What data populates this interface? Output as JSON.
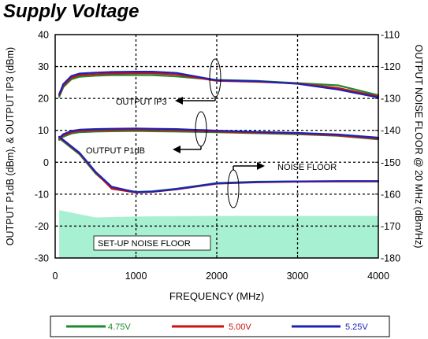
{
  "chart_data": {
    "type": "line",
    "title": "Supply Voltage",
    "xlabel": "FREQUENCY (MHz)",
    "ylabel_left": "OUTPUT P1dB (dBm), & OUTPUT IP3 (dBm)",
    "ylabel_right": "OUTPUT NOISE FLOOR @ 20 MHz (dBm/Hz)",
    "xlim": [
      0,
      4000
    ],
    "ylim_left": [
      -30,
      40
    ],
    "ylim_right": [
      -180,
      -110
    ],
    "x_ticks": [
      "0",
      "1000",
      "2000",
      "3000",
      "4000"
    ],
    "y_ticks_left": [
      "40",
      "30",
      "20",
      "10",
      "0",
      "-10",
      "-20",
      "-30"
    ],
    "y_ticks_right": [
      "-110",
      "-120",
      "-130",
      "-140",
      "-150",
      "-160",
      "-170",
      "-180"
    ],
    "grid": "dashed",
    "legend_position": "bottom",
    "legend": [
      "4.75V",
      "5.00V",
      "5.25V"
    ],
    "colors": {
      "4.75V": "#1e8a2e",
      "5.00V": "#cc1111",
      "5.25V": "#1c22b8",
      "setup_fill": "#a8f0d2"
    },
    "x": [
      50,
      100,
      200,
      300,
      500,
      700,
      1000,
      1200,
      1500,
      2000,
      2500,
      3000,
      3500,
      4000
    ],
    "groups": [
      {
        "label": "OUTPUT IP3",
        "axis": "left",
        "series": [
          {
            "name": "4.75V",
            "values": [
              20.5,
              23.5,
              26.0,
              26.8,
              27.1,
              27.3,
              27.3,
              27.3,
              26.9,
              25.8,
              25.5,
              24.8,
              24.1,
              21.0
            ]
          },
          {
            "name": "5.00V",
            "values": [
              21.0,
              24.0,
              26.5,
              27.3,
              27.6,
              27.8,
              27.9,
              27.9,
              27.5,
              25.5,
              25.2,
              24.7,
              23.3,
              20.6
            ]
          },
          {
            "name": "5.25V",
            "values": [
              21.3,
              24.5,
              27.0,
              27.8,
              28.1,
              28.3,
              28.4,
              28.4,
              28.0,
              25.7,
              25.4,
              24.6,
              22.8,
              20.3
            ]
          }
        ]
      },
      {
        "label": "OUTPUT P1dB",
        "axis": "left",
        "series": [
          {
            "name": "4.75V",
            "values": [
              7.0,
              8.0,
              9.0,
              9.4,
              9.6,
              9.7,
              9.8,
              9.7,
              9.6,
              9.4,
              9.1,
              8.8,
              8.3,
              7.2
            ]
          },
          {
            "name": "5.00V",
            "values": [
              7.3,
              8.4,
              9.4,
              9.8,
              10.0,
              10.1,
              10.2,
              10.1,
              10.0,
              9.6,
              9.3,
              9.0,
              8.4,
              7.4
            ]
          },
          {
            "name": "5.25V",
            "values": [
              7.6,
              8.8,
              9.8,
              10.2,
              10.4,
              10.5,
              10.6,
              10.5,
              10.4,
              9.9,
              9.5,
              9.2,
              8.7,
              7.7
            ]
          }
        ]
      },
      {
        "label": "NOISE FLOOR",
        "axis": "right",
        "series": [
          {
            "name": "4.75V",
            "values": [
              -142.5,
              -143.5,
              -145.5,
              -147.5,
              -153.5,
              -158.0,
              -159.3,
              -159.1,
              -158.3,
              -156.5,
              -156.1,
              -156.0,
              -156.0,
              -156.0
            ]
          },
          {
            "name": "5.00V",
            "values": [
              -142.3,
              -143.2,
              -145.2,
              -147.2,
              -153.2,
              -158.3,
              -159.5,
              -159.3,
              -158.5,
              -156.7,
              -156.3,
              -156.1,
              -156.0,
              -156.0
            ]
          },
          {
            "name": "5.25V",
            "values": [
              -142.0,
              -143.0,
              -145.0,
              -147.0,
              -153.0,
              -157.7,
              -159.4,
              -159.2,
              -158.4,
              -156.6,
              -156.2,
              -156.0,
              -155.9,
              -155.9
            ]
          }
        ]
      }
    ],
    "setup_noise_floor": {
      "label": "SET-UP NOISE FLOOR",
      "axis": "right",
      "x": [
        50,
        500,
        1000,
        2000,
        3000,
        4000
      ],
      "values": [
        -165.0,
        -167.3,
        -167.0,
        -166.8,
        -166.8,
        -166.8
      ]
    },
    "annotations": [
      "OUTPUT IP3",
      "OUTPUT P1dB",
      "NOISE FLOOR",
      "SET-UP NOISE FLOOR"
    ]
  }
}
